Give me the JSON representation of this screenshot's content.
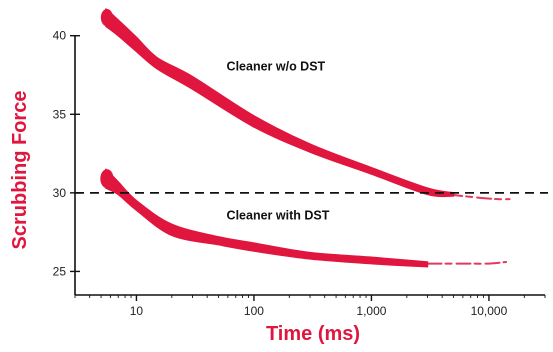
{
  "chart_data": {
    "type": "area",
    "xlabel": "Time (ms)",
    "ylabel": "Scrubbing Force",
    "x_scale": "log",
    "xlim": [
      3,
      30000
    ],
    "ylim": [
      23.5,
      41
    ],
    "y_ticks": [
      {
        "value": 25,
        "label": "25"
      },
      {
        "value": 30,
        "label": "30"
      },
      {
        "value": 35,
        "label": "35"
      },
      {
        "value": 40,
        "label": "40"
      }
    ],
    "x_ticks": [
      {
        "value": 10,
        "label": "10"
      },
      {
        "value": 100,
        "label": "100"
      },
      {
        "value": 1000,
        "label": "1,000"
      },
      {
        "value": 10000,
        "label": "10,000"
      }
    ],
    "reference_line": {
      "y": 30,
      "style": "dashed"
    },
    "grid": false,
    "band_color": "#e0163e",
    "axis_title_color": "#e0163e",
    "series": [
      {
        "upper": [
          [
            5.5,
            41.7
          ],
          [
            7,
            41.0
          ],
          [
            10,
            39.9
          ],
          [
            15,
            38.6
          ],
          [
            30,
            37.4
          ],
          [
            100,
            34.9
          ],
          [
            300,
            33.1
          ],
          [
            1000,
            31.6
          ],
          [
            3000,
            30.3
          ],
          [
            5000,
            30.0
          ]
        ],
        "lower": [
          [
            5.5,
            40.6
          ],
          [
            7,
            40.0
          ],
          [
            10,
            39.0
          ],
          [
            15,
            37.9
          ],
          [
            30,
            36.6
          ],
          [
            100,
            34.2
          ],
          [
            300,
            32.6
          ],
          [
            1000,
            31.2
          ],
          [
            3000,
            29.9
          ],
          [
            5000,
            29.8
          ]
        ],
        "tail": [
          [
            4500,
            29.9
          ],
          [
            8000,
            29.7
          ],
          [
            12000,
            29.6
          ],
          [
            15000,
            29.6
          ]
        ],
        "annotation": {
          "text": "Cleaner w/o DST",
          "x": 90,
          "y": 37.8
        }
      },
      {
        "upper": [
          [
            5.5,
            31.5
          ],
          [
            7,
            30.7
          ],
          [
            10,
            29.5
          ],
          [
            20,
            28.0
          ],
          [
            50,
            27.2
          ],
          [
            100,
            26.8
          ],
          [
            300,
            26.2
          ],
          [
            1000,
            25.9
          ],
          [
            3000,
            25.6
          ]
        ],
        "lower": [
          [
            5.5,
            30.3
          ],
          [
            7,
            29.9
          ],
          [
            10,
            28.9
          ],
          [
            20,
            27.3
          ],
          [
            50,
            26.7
          ],
          [
            100,
            26.3
          ],
          [
            300,
            25.8
          ],
          [
            1000,
            25.5
          ],
          [
            3000,
            25.3
          ]
        ],
        "tail": [
          [
            3000,
            25.5
          ],
          [
            6000,
            25.5
          ],
          [
            10000,
            25.5
          ],
          [
            14000,
            25.6
          ]
        ],
        "annotation": {
          "text": "Cleaner with DST",
          "x": 90,
          "y": 28.3
        }
      }
    ]
  }
}
